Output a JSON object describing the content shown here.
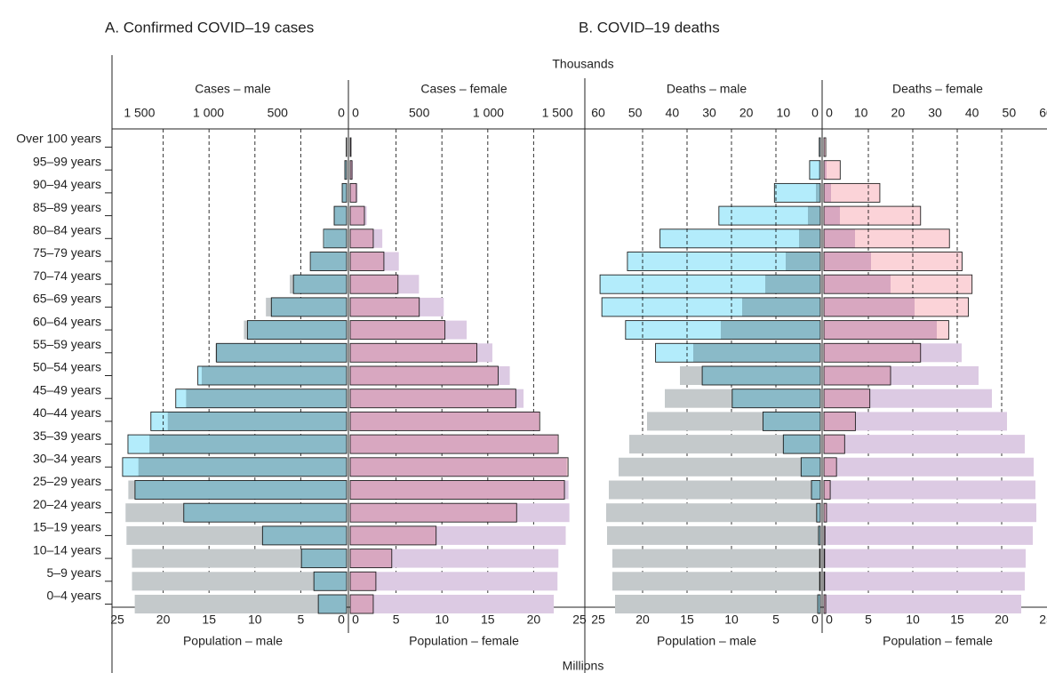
{
  "chart_data": {
    "type": "pyramid",
    "top_axis_label": "Thousands",
    "bottom_axis_label": "Millions",
    "categories": [
      "Over 100 years",
      "95–99 years",
      "90–94 years",
      "85–89 years",
      "80–84 years",
      "75–79 years",
      "70–74 years",
      "65–69 years",
      "60–64 years",
      "55–59 years",
      "50–54 years",
      "45–49 years",
      "40–44 years",
      "35–39 years",
      "30–34 years",
      "25–29 years",
      "20–24 years",
      "15–19 years",
      "10–14 years",
      "5–9 years",
      "0–4 years"
    ],
    "population": {
      "xlim": [
        0,
        25
      ],
      "xticks": [
        0,
        5,
        10,
        15,
        20,
        25
      ],
      "grid": true,
      "series": [
        {
          "name": "Population – male",
          "color": "#c4c9cb",
          "values": [
            0.03,
            0.2,
            0.5,
            1.4,
            2.4,
            3.9,
            6.2,
            8.8,
            11.2,
            14.3,
            15.8,
            17.5,
            19.5,
            21.5,
            22.7,
            23.8,
            24.1,
            24.0,
            23.4,
            23.4,
            23.1
          ]
        },
        {
          "name": "Population – female",
          "color": "#dccae3",
          "values": [
            0.1,
            0.3,
            0.8,
            1.8,
            3.5,
            5.3,
            7.5,
            10.2,
            12.7,
            15.5,
            17.4,
            18.9,
            20.6,
            22.6,
            23.6,
            23.8,
            23.9,
            23.5,
            22.7,
            22.6,
            22.2
          ]
        }
      ]
    },
    "panels": [
      {
        "title": "A. Confirmed COVID–19 cases",
        "xlim": [
          0,
          1660
        ],
        "xticks": [
          0,
          500,
          {
            "value": 1000,
            "label": "1 000"
          },
          {
            "value": 1500,
            "label": "1 500"
          }
        ],
        "series": [
          {
            "name": "Cases – male",
            "color": "#b3ecfb",
            "values": [
              3,
              13,
              32,
              90,
              167,
              263,
              385,
              545,
              718,
              942,
              1077,
              1237,
              1417,
              1583,
              1622,
              1532,
              1179,
              609,
              327,
              237,
              205
            ]
          },
          {
            "name": "Cases – female",
            "color": "#fbd3d8",
            "values": [
              6,
              13,
              45,
              103,
              167,
              244,
              346,
              500,
              686,
              917,
              1071,
              1199,
              1372,
              1506,
              1577,
              1551,
              1205,
              622,
              301,
              186,
              167
            ]
          }
        ]
      },
      {
        "title": "B. COVID–19 deaths",
        "xlim": [
          0,
          60
        ],
        "xticks": [
          0,
          10,
          20,
          30,
          40,
          50,
          60
        ],
        "series": [
          {
            "name": "Deaths – male",
            "color": "#b3ecfb",
            "values": [
              0.3,
              2.9,
              12.4,
              27.4,
              43.3,
              52.1,
              59.5,
              59.0,
              52.6,
              44.5,
              31.9,
              23.8,
              15.5,
              10.0,
              5.2,
              2.4,
              1.0,
              0.5,
              0.2,
              0.2,
              0.7
            ]
          },
          {
            "name": "Deaths – female",
            "color": "#fbd3d8",
            "values": [
              0.5,
              4.4,
              15.1,
              26.1,
              33.9,
              37.3,
              40.0,
              39.0,
              33.7,
              26.1,
              18.0,
              12.4,
              8.5,
              5.6,
              3.4,
              1.7,
              0.7,
              0.3,
              0.2,
              0.2,
              0.5
            ]
          }
        ]
      }
    ]
  }
}
